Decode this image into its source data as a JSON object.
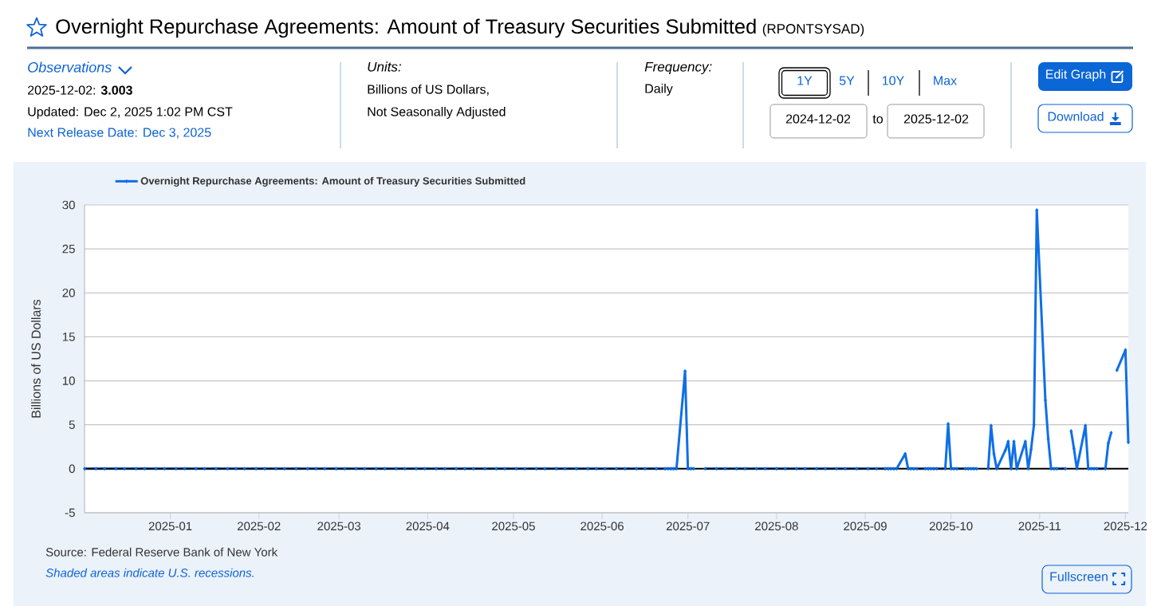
{
  "chart_data": {
    "type": "line",
    "title": "Overnight Repurchase Agreements: Amount of Treasury Securities Submitted",
    "subtitle": "(RPONTSYSAD)",
    "ylabel": "Billions of US Dollars",
    "annotations": [
      "Observations",
      "2025-12-02: **3.003**",
      "Updated: Dec 2, 2025 1:02 PM CST",
      "Next Release Date: Dec 3, 2025",
      "Units:",
      "Billions of US Dollars,",
      "Not Seasonally Adjusted",
      "Frequency:",
      "Daily",
      "1Y",
      "5Y",
      "10Y",
      "Max",
      "2024-12-02",
      "to",
      "2025-12-02",
      "Edit Graph",
      "Download",
      "Source: Federal Reserve Bank of New York",
      "Shaded areas indicate U.S. recessions.",
      "Fullscreen"
    ],
    "x": [
      "2024-12-02",
      "2024-12-06",
      "2024-12-09",
      "2024-12-13",
      "2024-12-16",
      "2024-12-20",
      "2024-12-23",
      "2024-12-27",
      "2024-12-30",
      "2025-01-03",
      "2025-01-06",
      "2025-01-10",
      "2025-01-13",
      "2025-01-17",
      "2025-01-21",
      "2025-01-24",
      "2025-01-27",
      "2025-01-31",
      "2025-02-03",
      "2025-02-07",
      "2025-02-10",
      "2025-02-14",
      "2025-02-18",
      "2025-02-21",
      "2025-02-24",
      "2025-02-28",
      "2025-03-03",
      "2025-03-07",
      "2025-03-10",
      "2025-03-14",
      "2025-03-17",
      "2025-03-21",
      "2025-03-24",
      "2025-03-28",
      "2025-03-31",
      "2025-04-04",
      "2025-04-07",
      "2025-04-11",
      "2025-04-14",
      "2025-04-17",
      "2025-04-21",
      "2025-04-25",
      "2025-04-28",
      "2025-05-02",
      "2025-05-05",
      "2025-05-09",
      "2025-05-12",
      "2025-05-16",
      "2025-05-19",
      "2025-05-23",
      "2025-05-27",
      "2025-05-30",
      "2025-06-02",
      "2025-06-06",
      "2025-06-09",
      "2025-06-13",
      "2025-06-16",
      "2025-06-20",
      "2025-06-23",
      "2025-06-24",
      "2025-06-25",
      "2025-06-26",
      "2025-06-27",
      "2025-06-30",
      "2025-07-01",
      "2025-07-02",
      "2025-07-03",
      "2025-07-04",
      "2025-07-07",
      "2025-07-11",
      "2025-07-14",
      "2025-07-18",
      "2025-07-21",
      "2025-07-25",
      "2025-07-28",
      "2025-08-01",
      "2025-08-04",
      "2025-08-08",
      "2025-08-11",
      "2025-08-15",
      "2025-08-18",
      "2025-08-22",
      "2025-08-25",
      "2025-08-29",
      "2025-09-02",
      "2025-09-05",
      "2025-09-08",
      "2025-09-09",
      "2025-09-10",
      "2025-09-11",
      "2025-09-12",
      "2025-09-15",
      "2025-09-16",
      "2025-09-17",
      "2025-09-18",
      "2025-09-19",
      "2025-09-22",
      "2025-09-23",
      "2025-09-24",
      "2025-09-25",
      "2025-09-26",
      "2025-09-29",
      "2025-09-30",
      "2025-10-01",
      "2025-10-02",
      "2025-10-03",
      "2025-10-06",
      "2025-10-07",
      "2025-10-08",
      "2025-10-09",
      "2025-10-10",
      "2025-10-13",
      "2025-10-14",
      "2025-10-15",
      "2025-10-16",
      "2025-10-17",
      "2025-10-20",
      "2025-10-21",
      "2025-10-22",
      "2025-10-23",
      "2025-10-24",
      "2025-10-27",
      "2025-10-28",
      "2025-10-29",
      "2025-10-30",
      "2025-10-31",
      "2025-11-03",
      "2025-11-04",
      "2025-11-05",
      "2025-11-06",
      "2025-11-07",
      "2025-11-10",
      "2025-11-11",
      "2025-11-12",
      "2025-11-13",
      "2025-11-14",
      "2025-11-17",
      "2025-11-18",
      "2025-11-19",
      "2025-11-20",
      "2025-11-21",
      "2025-11-24",
      "2025-11-25",
      "2025-11-26",
      "2025-11-27",
      "2025-11-28",
      "2025-12-01",
      "2025-12-02"
    ],
    "series": [
      {
        "name": "Overnight Repurchase Agreements: Amount of Treasury Securities Submitted",
        "color": "#0f6fe8",
        "values": [
          0,
          0,
          0,
          0,
          0,
          0,
          0,
          0,
          0,
          0,
          0,
          0,
          0,
          0,
          0,
          0,
          0,
          0,
          0,
          0,
          0,
          0,
          0,
          0,
          0,
          0,
          0,
          0,
          0,
          0,
          0,
          0,
          0,
          0,
          0,
          0,
          0,
          0,
          0,
          0,
          0,
          0,
          0,
          0,
          0,
          0,
          0,
          0,
          0,
          0,
          0,
          0,
          0,
          0,
          0,
          0,
          0,
          0,
          0,
          0,
          0,
          0,
          0,
          11.1,
          0,
          0,
          0,
          null,
          0,
          0,
          0,
          0,
          0,
          0,
          0,
          0,
          0,
          0,
          0,
          0,
          0,
          0,
          0,
          0,
          0,
          0,
          0,
          0,
          0,
          0,
          0,
          1.7,
          0,
          0,
          0,
          0,
          0,
          0,
          0,
          0,
          0,
          0,
          5.1,
          0,
          0,
          0,
          0,
          0,
          0,
          0,
          0,
          null,
          0,
          4.9,
          1.7,
          0,
          2.1,
          3.1,
          0,
          3.1,
          0,
          3.1,
          0,
          2.2,
          5.0,
          29.4,
          7.8,
          3.4,
          0,
          0,
          0,
          0,
          null,
          4.3,
          2.3,
          0,
          4.9,
          0,
          0,
          0,
          0,
          0,
          2.9,
          4.1,
          null,
          11.2,
          13.5,
          3.003
        ]
      }
    ],
    "xlim": [
      "2024-12-02",
      "2025-12-02"
    ],
    "xticks": [
      "2025-01",
      "2025-02",
      "2025-03",
      "2025-04",
      "2025-05",
      "2025-06",
      "2025-07",
      "2025-08",
      "2025-09",
      "2025-10",
      "2025-11",
      "2025-12"
    ],
    "ylim": [
      -5,
      30
    ],
    "yticks": [
      -5,
      0,
      5,
      10,
      15,
      20,
      25,
      30
    ],
    "ref_lines": [
      {
        "axis": "y",
        "value": 0,
        "color": "#000000"
      }
    ],
    "grid": "y",
    "legend": "top left",
    "marker": "diamond",
    "line_style": "solid"
  }
}
